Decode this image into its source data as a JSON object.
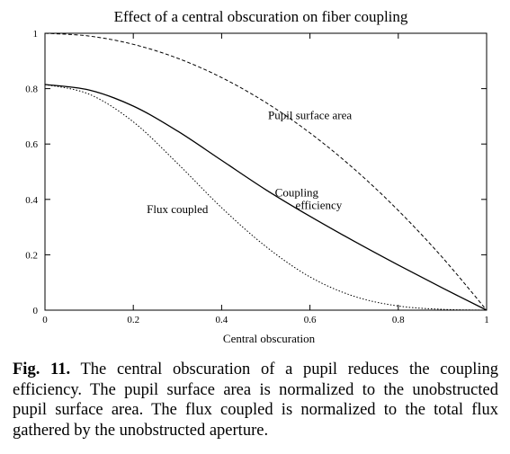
{
  "chart_data": {
    "type": "line",
    "title": "Effect of a central obscuration on fiber coupling",
    "xlabel": "Central obscuration",
    "ylabel": "",
    "xlim": [
      0,
      1
    ],
    "ylim": [
      0,
      1
    ],
    "grid": false,
    "xticks": [
      "0",
      "0.2",
      "0.4",
      "0.6",
      "0.8",
      "1"
    ],
    "yticks": [
      "0",
      "0.2",
      "0.4",
      "0.6",
      "0.8",
      "1"
    ],
    "series": [
      {
        "name": "Pupil surface area",
        "style": "dashed",
        "x": [
          0,
          0.1,
          0.2,
          0.3,
          0.4,
          0.5,
          0.6,
          0.7,
          0.8,
          0.9,
          1.0
        ],
        "values": [
          1.0,
          0.99,
          0.96,
          0.91,
          0.84,
          0.75,
          0.64,
          0.51,
          0.36,
          0.19,
          0.0
        ]
      },
      {
        "name": "Coupling efficiency",
        "style": "solid",
        "x": [
          0,
          0.1,
          0.2,
          0.3,
          0.4,
          0.5,
          0.6,
          0.7,
          0.8,
          0.9,
          1.0
        ],
        "values": [
          0.815,
          0.795,
          0.737,
          0.647,
          0.541,
          0.435,
          0.339,
          0.249,
          0.163,
          0.08,
          0.0
        ]
      },
      {
        "name": "Flux coupled",
        "style": "dotted",
        "x": [
          0,
          0.1,
          0.2,
          0.3,
          0.4,
          0.5,
          0.6,
          0.7,
          0.8,
          0.9,
          1.0
        ],
        "values": [
          0.815,
          0.78,
          0.68,
          0.53,
          0.37,
          0.23,
          0.12,
          0.05,
          0.015,
          0.003,
          0.0
        ]
      }
    ],
    "annotations": [
      {
        "text": "Pupil surface area",
        "x": 0.6,
        "y": 0.69
      },
      {
        "text": "Coupling",
        "x": 0.57,
        "y": 0.41
      },
      {
        "text": "efficiency",
        "x": 0.62,
        "y": 0.365
      },
      {
        "text": "Flux coupled",
        "x": 0.3,
        "y": 0.35
      }
    ]
  },
  "caption": {
    "label": "Fig. 11.",
    "text": "The central obscuration of a pupil reduces the coupling efficiency. The pupil surface area is normalized to the unobstructed pupil surface area. The flux coupled is normalized to the total flux gathered by the unobstructed aperture."
  }
}
